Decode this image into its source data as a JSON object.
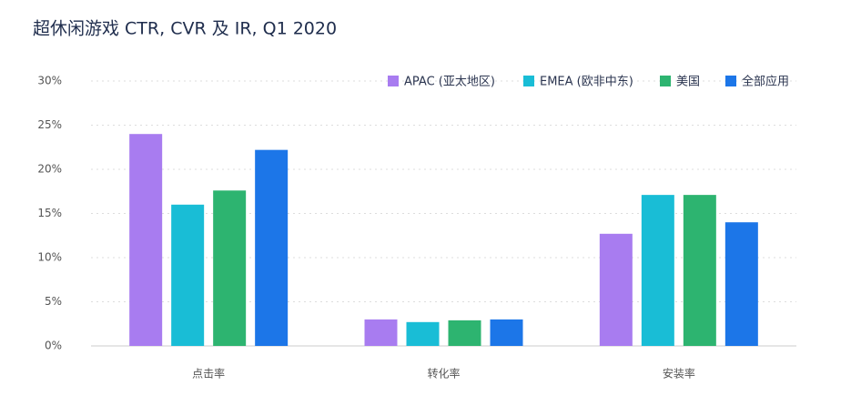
{
  "chart_data": {
    "type": "bar",
    "title": "超休闲游戏 CTR, CVR 及 IR, Q1 2020",
    "categories": [
      "点击率",
      "转化率",
      "安装率"
    ],
    "series": [
      {
        "name": "APAC (亚太地区)",
        "color": "#a87cf0",
        "values": [
          24,
          3.0,
          12.7
        ]
      },
      {
        "name": "EMEA (欧非中东)",
        "color": "#19bdd6",
        "values": [
          16,
          2.7,
          17.1
        ]
      },
      {
        "name": "美国",
        "color": "#2db470",
        "values": [
          17.6,
          2.9,
          17.1
        ]
      },
      {
        "name": "全部应用",
        "color": "#1c76e8",
        "values": [
          22.2,
          3.0,
          14.0
        ]
      }
    ],
    "ylim": [
      0,
      30
    ],
    "yticks": [
      {
        "value": 0,
        "label": "0%"
      },
      {
        "value": 5,
        "label": "5%"
      },
      {
        "value": 10,
        "label": "10%"
      },
      {
        "value": 15,
        "label": "15%"
      },
      {
        "value": 20,
        "label": "20%"
      },
      {
        "value": 25,
        "label": "25%"
      },
      {
        "value": 30,
        "label": "30%"
      }
    ],
    "grid": true,
    "legend": "top-right"
  }
}
